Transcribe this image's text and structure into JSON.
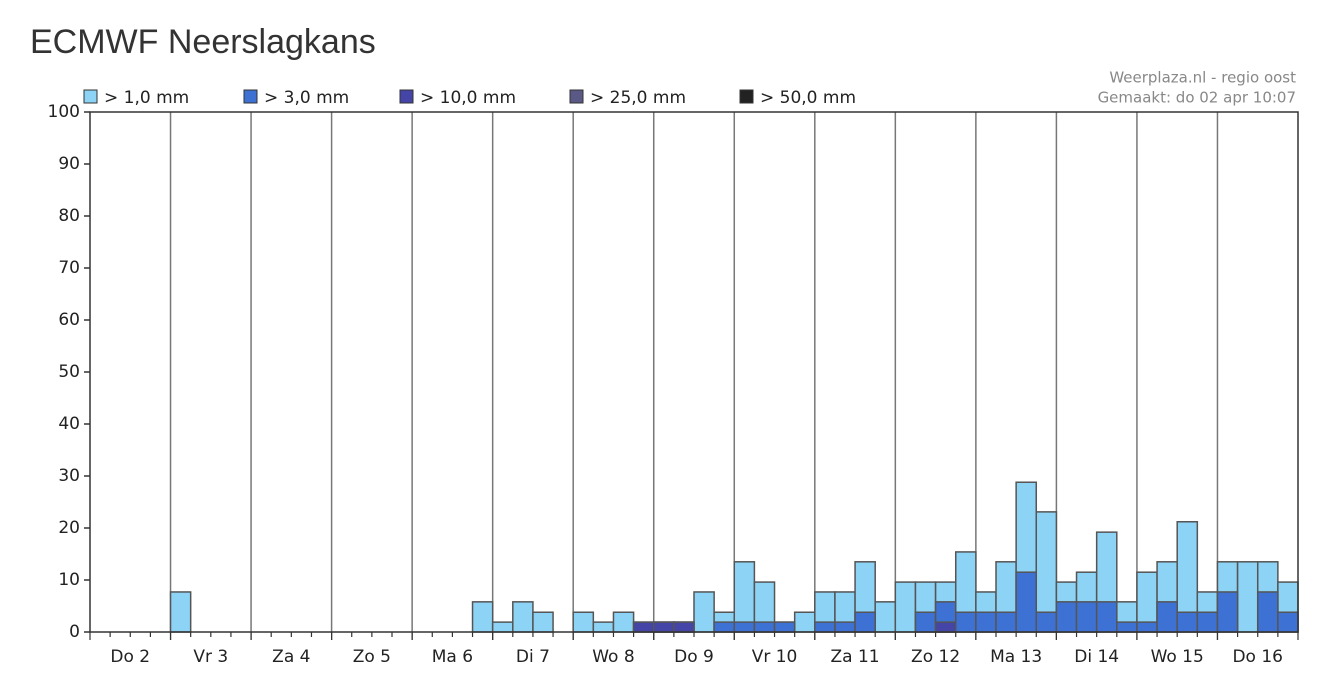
{
  "chart_data": {
    "type": "bar",
    "title": "ECMWF Neerslagkans",
    "source": "Weerplaza.nl - regio oost",
    "made": "Gemaakt: do 02 apr 10:07",
    "categories": [
      "Do 2",
      "Vr 3",
      "Za 4",
      "Zo 5",
      "Ma 6",
      "Di 7",
      "Wo 8",
      "Do 9",
      "Vr 10",
      "Za 11",
      "Zo 12",
      "Ma 13",
      "Di 14",
      "Wo 15",
      "Do 16"
    ],
    "ylim": [
      0,
      100
    ],
    "yticks": [
      0,
      10,
      20,
      30,
      40,
      50,
      60,
      70,
      80,
      90,
      100
    ],
    "grid": true,
    "series": [
      {
        "name": "> 1,0 mm",
        "color": "#8dd3f6",
        "values": [
          [
            0,
            0,
            0,
            0
          ],
          [
            7.7,
            0,
            0,
            0
          ],
          [
            0,
            0,
            0,
            0
          ],
          [
            0,
            0,
            0,
            0
          ],
          [
            0,
            0,
            0,
            5.8
          ],
          [
            1.9,
            5.8,
            3.8,
            0
          ],
          [
            3.8,
            1.9,
            3.8,
            1.9
          ],
          [
            1.9,
            1.9,
            7.7,
            3.8
          ],
          [
            13.5,
            9.6,
            1.9,
            3.8
          ],
          [
            7.7,
            7.7,
            13.5,
            5.8
          ],
          [
            9.6,
            9.6,
            9.6,
            15.4
          ],
          [
            7.7,
            13.5,
            28.8,
            23.1
          ],
          [
            9.6,
            11.5,
            19.2,
            5.8
          ],
          [
            11.5,
            13.5,
            21.2,
            7.7
          ],
          [
            13.5,
            13.5,
            13.5,
            9.6
          ]
        ]
      },
      {
        "name": "> 3,0 mm",
        "color": "#3d72d4",
        "values": [
          [
            0,
            0,
            0,
            0
          ],
          [
            0,
            0,
            0,
            0
          ],
          [
            0,
            0,
            0,
            0
          ],
          [
            0,
            0,
            0,
            0
          ],
          [
            0,
            0,
            0,
            0
          ],
          [
            0,
            0,
            0,
            0
          ],
          [
            0,
            0,
            0,
            0
          ],
          [
            1.9,
            1.9,
            0,
            1.9
          ],
          [
            1.9,
            1.9,
            1.9,
            0
          ],
          [
            1.9,
            1.9,
            3.8,
            0
          ],
          [
            0,
            3.8,
            5.8,
            3.8
          ],
          [
            3.8,
            3.8,
            11.5,
            3.8
          ],
          [
            5.8,
            5.8,
            5.8,
            1.9
          ],
          [
            1.9,
            5.8,
            3.8,
            3.8
          ],
          [
            7.7,
            0,
            7.7,
            3.8
          ]
        ]
      },
      {
        "name": "> 10,0 mm",
        "color": "#4545a8",
        "values": [
          [
            0,
            0,
            0,
            0
          ],
          [
            0,
            0,
            0,
            0
          ],
          [
            0,
            0,
            0,
            0
          ],
          [
            0,
            0,
            0,
            0
          ],
          [
            0,
            0,
            0,
            0
          ],
          [
            0,
            0,
            0,
            0
          ],
          [
            0,
            0,
            0,
            1.9
          ],
          [
            1.9,
            1.9,
            0,
            0
          ],
          [
            0,
            0,
            0,
            0
          ],
          [
            0,
            0,
            0,
            0
          ],
          [
            0,
            0,
            1.9,
            0
          ],
          [
            0,
            0,
            0,
            0
          ],
          [
            0,
            0,
            0,
            0
          ],
          [
            0,
            0,
            0,
            0
          ],
          [
            0,
            0,
            0,
            0
          ]
        ]
      },
      {
        "name": "> 25,0 mm",
        "color": "#5a5884",
        "values": [
          [
            0,
            0,
            0,
            0
          ],
          [
            0,
            0,
            0,
            0
          ],
          [
            0,
            0,
            0,
            0
          ],
          [
            0,
            0,
            0,
            0
          ],
          [
            0,
            0,
            0,
            0
          ],
          [
            0,
            0,
            0,
            0
          ],
          [
            0,
            0,
            0,
            0
          ],
          [
            0,
            0,
            0,
            0
          ],
          [
            0,
            0,
            0,
            0
          ],
          [
            0,
            0,
            0,
            0
          ],
          [
            0,
            0,
            0,
            0
          ],
          [
            0,
            0,
            0,
            0
          ],
          [
            0,
            0,
            0,
            0
          ],
          [
            0,
            0,
            0,
            0
          ],
          [
            0,
            0,
            0,
            0
          ]
        ]
      },
      {
        "name": "> 50,0 mm",
        "color": "#222222",
        "values": [
          [
            0,
            0,
            0,
            0
          ],
          [
            0,
            0,
            0,
            0
          ],
          [
            0,
            0,
            0,
            0
          ],
          [
            0,
            0,
            0,
            0
          ],
          [
            0,
            0,
            0,
            0
          ],
          [
            0,
            0,
            0,
            0
          ],
          [
            0,
            0,
            0,
            0
          ],
          [
            0,
            0,
            0,
            0
          ],
          [
            0,
            0,
            0,
            0
          ],
          [
            0,
            0,
            0,
            0
          ],
          [
            0,
            0,
            0,
            0
          ],
          [
            0,
            0,
            0,
            0
          ],
          [
            0,
            0,
            0,
            0
          ],
          [
            0,
            0,
            0,
            0
          ],
          [
            0,
            0,
            0,
            0
          ]
        ]
      }
    ]
  }
}
